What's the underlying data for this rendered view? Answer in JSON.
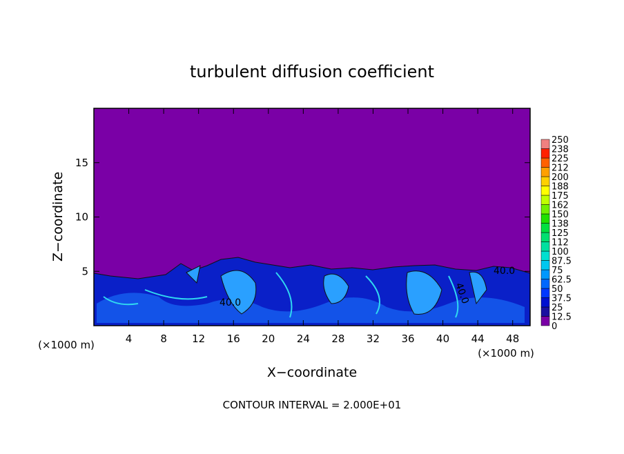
{
  "chart_data": {
    "type": "contour",
    "title": "turbulent diffusion coefficient",
    "xlabel": "X−coordinate",
    "ylabel": "Z−coordinate",
    "xunit": "(×1000 m)",
    "footer": "CONTOUR INTERVAL = 2.000E+01",
    "xlim": [
      0,
      50
    ],
    "ylim": [
      0,
      20
    ],
    "xticks": [
      4,
      8,
      12,
      16,
      20,
      24,
      28,
      32,
      36,
      40,
      44,
      48
    ],
    "yticks": [
      5,
      10,
      15
    ],
    "annotations": [
      "40.0",
      "40.0",
      "40.0"
    ],
    "colorbar": {
      "levels": [
        0,
        12.5,
        25,
        37.5,
        50,
        62.5,
        75,
        87.5,
        100,
        {
          "value": 112.5,
          "label": "112"
        },
        125,
        {
          "value": 137.5,
          "label": "138"
        },
        150,
        {
          "value": 162.5,
          "label": "162"
        },
        175,
        {
          "value": 187.5,
          "label": "188"
        },
        200,
        {
          "value": 212.5,
          "label": "212"
        },
        225,
        {
          "value": 237.5,
          "label": "238"
        },
        250
      ],
      "colors": [
        "#7a00a6",
        "#1a10a0",
        "#0010d0",
        "#0038ff",
        "#0068ff",
        "#0098ff",
        "#00c8f0",
        "#00e0d0",
        "#00e0a0",
        "#00e070",
        "#00e040",
        "#20e000",
        "#70f000",
        "#c0ff00",
        "#ffff00",
        "#ffd000",
        "#ffa000",
        "#ff6000",
        "#ff2000",
        "#f08080"
      ]
    }
  }
}
